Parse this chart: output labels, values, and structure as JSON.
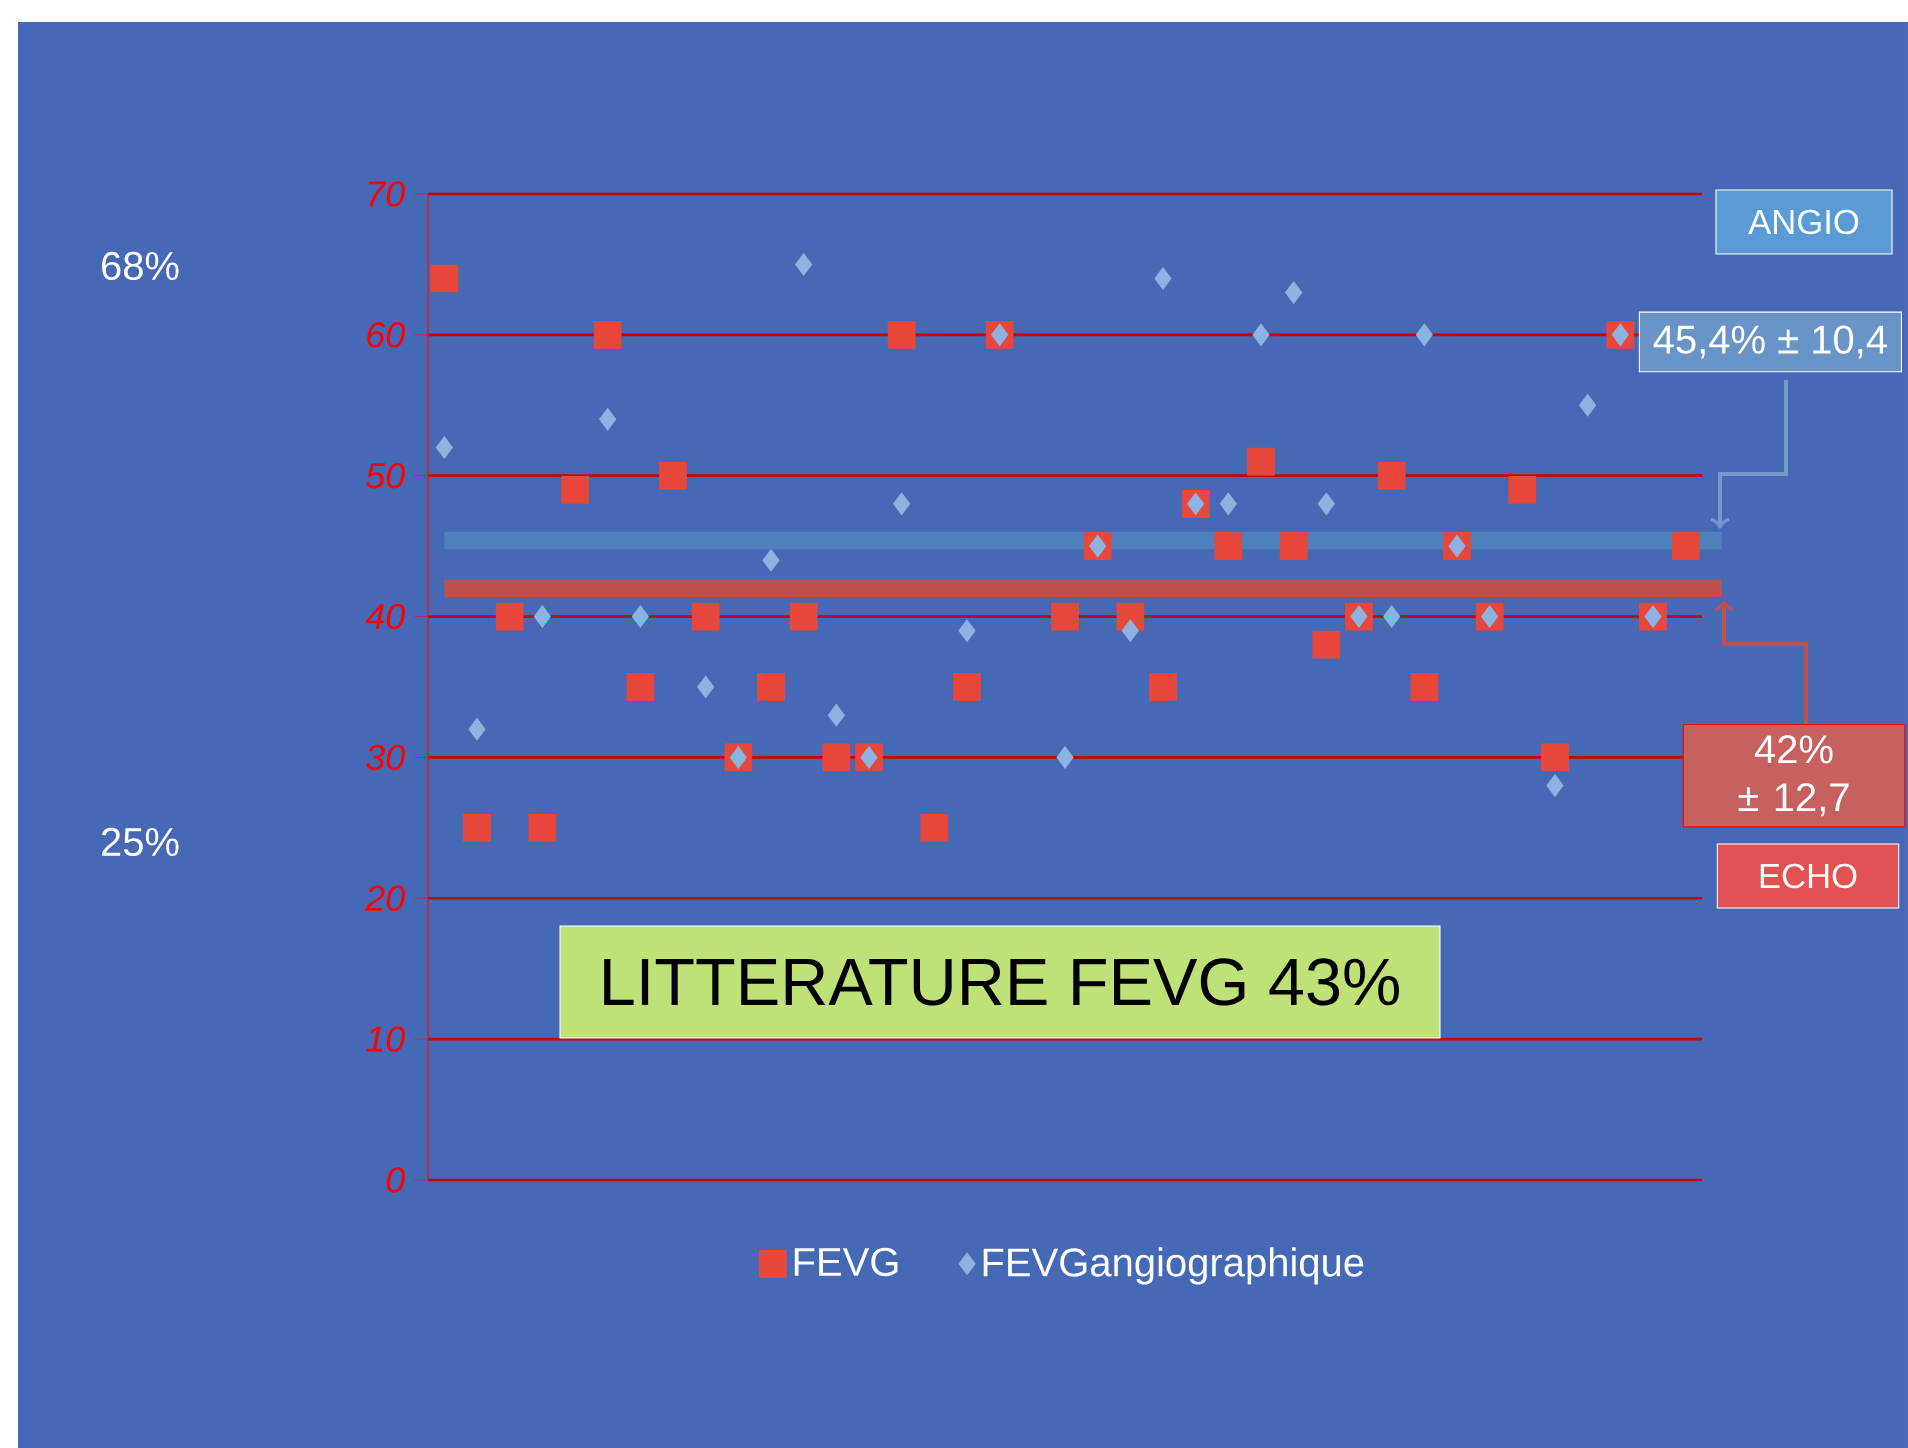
{
  "chart_data": {
    "type": "scatter",
    "categories": [
      null,
      null,
      null,
      null,
      null,
      null,
      null,
      null,
      null,
      null,
      null,
      null,
      null,
      null,
      null,
      null,
      null,
      null,
      null,
      null,
      null,
      null,
      null,
      null,
      null,
      null,
      null,
      null,
      null,
      null,
      null,
      null,
      null,
      null,
      null,
      null,
      null,
      null,
      null
    ],
    "series": [
      {
        "name": "FEVG",
        "color": "#e8483c",
        "marker": "square",
        "values": [
          64,
          25,
          40,
          25,
          49,
          60,
          35,
          50,
          40,
          30,
          35,
          40,
          30,
          30,
          60,
          25,
          35,
          60,
          null,
          40,
          45,
          40,
          35,
          48,
          45,
          51,
          45,
          38,
          40,
          50,
          35,
          45,
          40,
          49,
          30,
          null,
          60,
          40,
          45
        ]
      },
      {
        "name": "FEVGangiographique",
        "color": "#8db3e2",
        "marker": "diamond",
        "values": [
          52,
          32,
          null,
          40,
          null,
          54,
          40,
          null,
          35,
          30,
          44,
          65,
          33,
          30,
          48,
          null,
          39,
          60,
          null,
          30,
          45,
          39,
          64,
          48,
          48,
          60,
          63,
          48,
          40,
          40,
          60,
          45,
          40,
          null,
          28,
          55,
          60,
          40,
          null
        ]
      }
    ],
    "ylim": [
      0,
      70
    ],
    "yticks": [
      0,
      10,
      20,
      30,
      40,
      50,
      60,
      70
    ],
    "grid": "y",
    "legend": "bottom",
    "tick_labels": "y",
    "ref_lines": [
      {
        "axis": "y",
        "value": 45.4,
        "label": "45,4% ± 10,4",
        "color": "#4f81bd"
      },
      {
        "axis": "y",
        "value": 42,
        "label": "42% ± 12,7",
        "color": "#c0504d"
      }
    ],
    "annotations": [
      "ANGIO",
      "ECHO",
      "68%",
      "25%",
      "LITTERATURE FEVG 43%"
    ]
  }
}
